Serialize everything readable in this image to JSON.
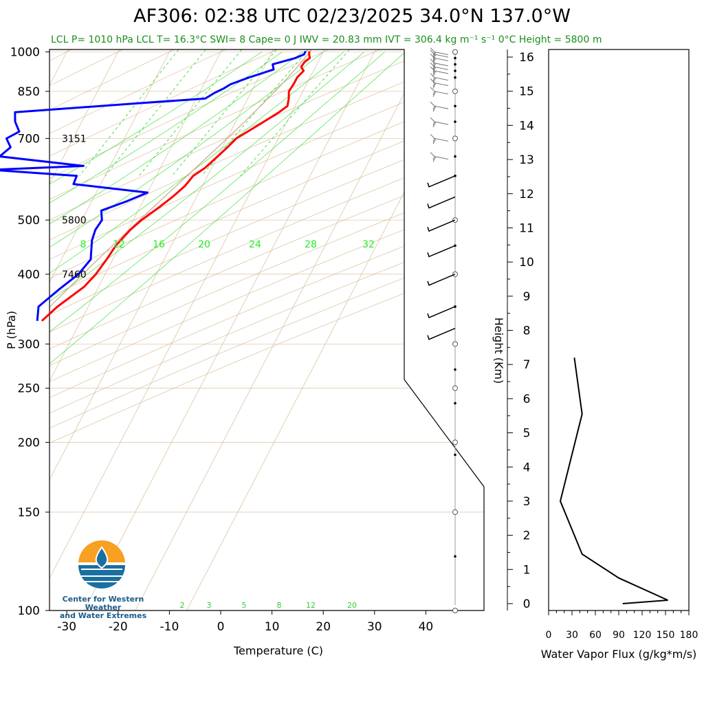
{
  "title": "AF306: 02:38 UTC 02/23/2025  34.0°N 137.0°W",
  "subtitle": "LCL P= 1010 hPa  LCL T= 16.3°C  SWI= 8  Cape= 0 J  IWV = 20.83 mm  IVT = 306.4 kg m⁻¹ s⁻¹  0°C Height = 5800 m",
  "logo": {
    "line1": "Center for Western Weather",
    "line2": "and Water Extremes"
  },
  "colors": {
    "temperature": "#ff0000",
    "dewpoint": "#0000ff",
    "isotherm": "#d2b48c",
    "mixing_ratio": "#33dd33"
  },
  "chart_data": [
    {
      "type": "line",
      "subtype": "skew-T log-P",
      "xlabel": "Temperature (C)",
      "ylabel": "P (hPa)",
      "xlim": [
        -34,
        51
      ],
      "ylim": [
        1010,
        100
      ],
      "y_scale": "log",
      "x_ticks": [
        "-30",
        "-20",
        "-10",
        "0",
        "10",
        "20",
        "30",
        "40"
      ],
      "y_ticks": [
        "100",
        "150",
        "200",
        "250",
        "300",
        "400",
        "500",
        "700",
        "850",
        "1000"
      ],
      "height_labels": [
        {
          "p": 400,
          "text": "7460"
        },
        {
          "p": 500,
          "text": "5800"
        },
        {
          "p": 700,
          "text": "3151"
        }
      ],
      "mixing_ratio_labels": [
        "8",
        "12",
        "16",
        "20",
        "24",
        "28",
        "32"
      ],
      "mixing_ratio_bottom_labels": [
        "2",
        "3",
        "5",
        "8",
        "12",
        "20"
      ],
      "series": [
        {
          "name": "Temperature",
          "p": [
            1003,
            990,
            975,
            960,
            940,
            925,
            900,
            880,
            850,
            825,
            800,
            780,
            750,
            725,
            700,
            675,
            650,
            620,
            600,
            575,
            550,
            525,
            500,
            480,
            450,
            425,
            400,
            380,
            350,
            330
          ],
          "t": [
            17.2,
            17.5,
            18.0,
            17.4,
            17.2,
            18.1,
            17.5,
            17.5,
            17.3,
            18.0,
            18.5,
            17.5,
            15.5,
            13.7,
            11.8,
            11.0,
            10.0,
            8.7,
            7.2,
            6.6,
            5.3,
            3.6,
            1.6,
            0.4,
            -0.8,
            -1.2,
            -1.8,
            -2.8,
            -6.0,
            -7.6
          ]
        },
        {
          "name": "Dewpoint",
          "p": [
            1003,
            990,
            975,
            950,
            930,
            900,
            875,
            860,
            845,
            825,
            810,
            780,
            750,
            720,
            700,
            675,
            650,
            625,
            615,
            600,
            580,
            560,
            540,
            520,
            500,
            480,
            460,
            425,
            400,
            375,
            350,
            330
          ],
          "t": [
            16.5,
            16.5,
            15.2,
            11.4,
            12.1,
            8.1,
            5.2,
            4.3,
            3.0,
            1.7,
            -10.3,
            -34.0,
            -33.0,
            -31.2,
            -33.0,
            -31.3,
            -32.5,
            -15.2,
            -32.8,
            -15.5,
            -15.3,
            0.0,
            -3.2,
            -7.2,
            -6.1,
            -6.4,
            -6.0,
            -4.3,
            -5.2,
            -7.5,
            -9.7,
            -8.5
          ]
        }
      ],
      "wind_barbs_p": [
        1000,
        990,
        975,
        955,
        940,
        925,
        900,
        880,
        850,
        800,
        750,
        700,
        650,
        600,
        550,
        500,
        450,
        400,
        350,
        320
      ]
    },
    {
      "type": "line",
      "xlabel": "Water Vapor Flux (g/kg*m/s)",
      "ylabel": "Height (Km)",
      "xlim": [
        0,
        180
      ],
      "ylim": [
        -0.3,
        16.5
      ],
      "x_ticks": [
        "0",
        "30",
        "60",
        "90",
        "120",
        "150",
        "180"
      ],
      "y_ticks": [
        "0",
        "1",
        "2",
        "3",
        "4",
        "5",
        "6",
        "7",
        "8",
        "9",
        "10",
        "11",
        "12",
        "13",
        "14",
        "15",
        "16"
      ],
      "series": [
        {
          "height_km": [
            0.0,
            0.1,
            0.75,
            1.45,
            3.0,
            5.55,
            7.2
          ],
          "flux": [
            95,
            153,
            90,
            43,
            15,
            43,
            33
          ]
        }
      ]
    }
  ]
}
